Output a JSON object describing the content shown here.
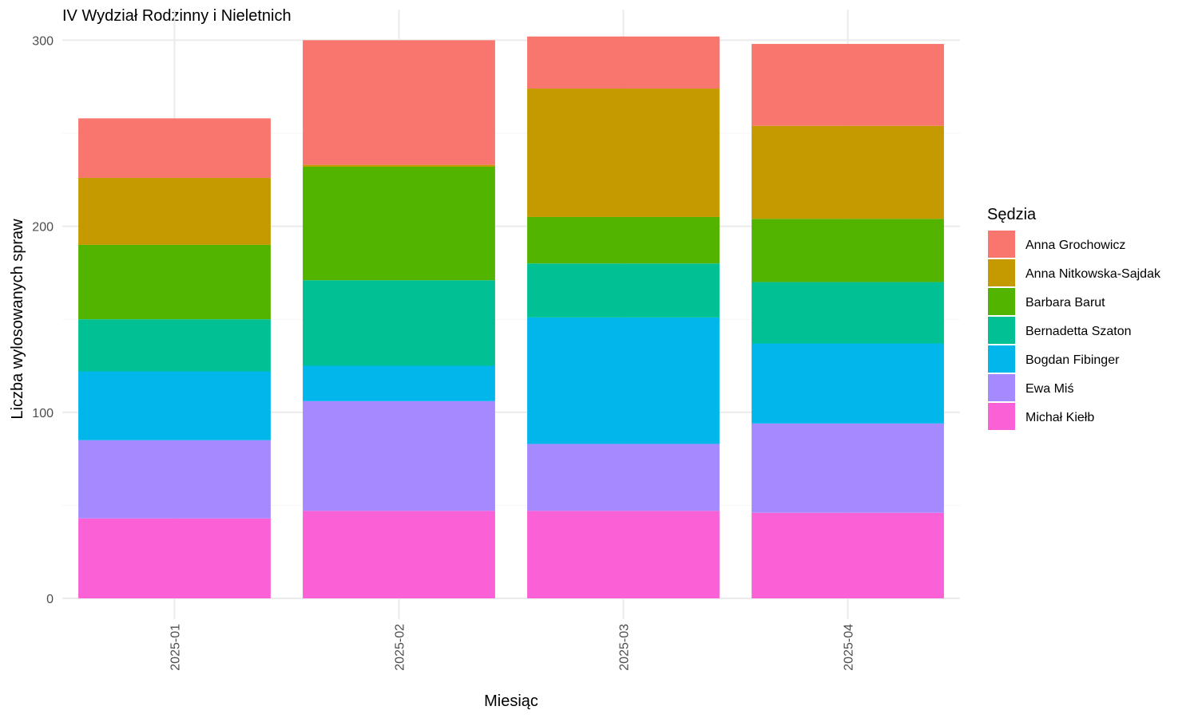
{
  "chart_data": {
    "type": "bar",
    "stacked": true,
    "title": "IV Wydział Rodzinny i Nieletnich",
    "xlabel": "Miesiąc",
    "ylabel": "Liczba wylosowanych spraw",
    "categories": [
      "2025-01",
      "2025-02",
      "2025-03",
      "2025-04"
    ],
    "ylim": [
      0,
      303
    ],
    "yticks": [
      0,
      100,
      200,
      300
    ],
    "ytick_labels": [
      "0",
      "100",
      "200",
      "300"
    ],
    "grid": true,
    "legend_title": "Sędzia",
    "legend_position": "right",
    "series": [
      {
        "name": "Michał Kiełb",
        "color": "#FB61D7",
        "values": [
          43,
          47,
          47,
          46
        ]
      },
      {
        "name": "Ewa Miś",
        "color": "#A58AFF",
        "values": [
          42,
          59,
          36,
          48
        ]
      },
      {
        "name": "Bogdan Fibinger",
        "color": "#00B6EB",
        "values": [
          37,
          19,
          68,
          43
        ]
      },
      {
        "name": "Bernadetta Szaton",
        "color": "#00C094",
        "values": [
          28,
          46,
          29,
          33
        ]
      },
      {
        "name": "Barbara Barut",
        "color": "#53B400",
        "values": [
          40,
          61,
          25,
          34
        ]
      },
      {
        "name": "Anna Nitkowska-Sajdak",
        "color": "#C49A00",
        "values": [
          36,
          1,
          69,
          50
        ]
      },
      {
        "name": "Anna Grochowicz",
        "color": "#F8766D",
        "values": [
          32,
          67,
          28,
          44
        ]
      }
    ],
    "legend_order": [
      "Anna Grochowicz",
      "Anna Nitkowska-Sajdak",
      "Barbara Barut",
      "Bernadetta Szaton",
      "Bogdan Fibinger",
      "Ewa Miś",
      "Michał Kiełb"
    ]
  }
}
